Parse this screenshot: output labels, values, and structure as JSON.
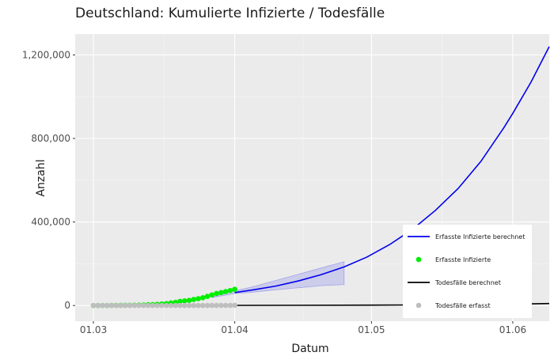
{
  "chart_data": {
    "type": "line",
    "title": "Deutschland: Kumulierte Infizierte / Todesfälle",
    "xlabel": "Datum",
    "ylabel": "Anzahl",
    "x_ticks": [
      "01.03",
      "01.04",
      "01.05",
      "01.06"
    ],
    "y_ticks": [
      "0",
      "400,000",
      "800,000",
      "1,200,000"
    ],
    "y_tick_values": [
      0,
      400000,
      800000,
      1200000
    ],
    "x_range": [
      "2020-02-26",
      "2020-06-09"
    ],
    "y_range": [
      -75000,
      1300000
    ],
    "grid": true,
    "legend_position": "bottom-right",
    "series": [
      {
        "name": "Erfasste Infizierte berechnet",
        "kind": "line",
        "color": "#0000ee",
        "points": [
          [
            "2020-04-01",
            62000
          ],
          [
            "2020-04-05",
            75000
          ],
          [
            "2020-04-10",
            93000
          ],
          [
            "2020-04-15",
            118000
          ],
          [
            "2020-04-20",
            148000
          ],
          [
            "2020-04-25",
            185000
          ],
          [
            "2020-04-30",
            232000
          ],
          [
            "2020-05-05",
            292000
          ],
          [
            "2020-05-10",
            365000
          ],
          [
            "2020-05-15",
            455000
          ],
          [
            "2020-05-20",
            560000
          ],
          [
            "2020-05-25",
            690000
          ],
          [
            "2020-05-30",
            850000
          ],
          [
            "2020-06-01",
            920000
          ],
          [
            "2020-06-05",
            1070000
          ],
          [
            "2020-06-09",
            1240000
          ]
        ]
      },
      {
        "name": "Erfasste Infizierte",
        "kind": "points",
        "color": "#00ee00",
        "points": [
          [
            "2020-03-01",
            130
          ],
          [
            "2020-03-02",
            160
          ],
          [
            "2020-03-03",
            200
          ],
          [
            "2020-03-04",
            260
          ],
          [
            "2020-03-05",
            480
          ],
          [
            "2020-03-06",
            670
          ],
          [
            "2020-03-07",
            850
          ],
          [
            "2020-03-08",
            1040
          ],
          [
            "2020-03-09",
            1200
          ],
          [
            "2020-03-10",
            1560
          ],
          [
            "2020-03-11",
            1900
          ],
          [
            "2020-03-12",
            2700
          ],
          [
            "2020-03-13",
            3700
          ],
          [
            "2020-03-14",
            4600
          ],
          [
            "2020-03-15",
            5800
          ],
          [
            "2020-03-16",
            7300
          ],
          [
            "2020-03-17",
            9300
          ],
          [
            "2020-03-18",
            12300
          ],
          [
            "2020-03-19",
            15300
          ],
          [
            "2020-03-20",
            19800
          ],
          [
            "2020-03-21",
            22200
          ],
          [
            "2020-03-22",
            24900
          ],
          [
            "2020-03-23",
            29100
          ],
          [
            "2020-03-24",
            32900
          ],
          [
            "2020-03-25",
            37300
          ],
          [
            "2020-03-26",
            43900
          ],
          [
            "2020-03-27",
            50900
          ],
          [
            "2020-03-28",
            57700
          ],
          [
            "2020-03-29",
            62100
          ],
          [
            "2020-03-30",
            66900
          ],
          [
            "2020-03-31",
            71800
          ],
          [
            "2020-04-01",
            77900
          ]
        ]
      },
      {
        "name": "Todesfälle berechnet",
        "kind": "line",
        "color": "#000000",
        "points": [
          [
            "2020-04-01",
            800
          ],
          [
            "2020-04-15",
            1200
          ],
          [
            "2020-05-01",
            1900
          ],
          [
            "2020-05-15",
            3500
          ],
          [
            "2020-06-01",
            6500
          ],
          [
            "2020-06-09",
            9500
          ]
        ]
      },
      {
        "name": "Todesfälle erfasst",
        "kind": "points",
        "color": "#bebebe",
        "points": [
          [
            "2020-03-01",
            0
          ],
          [
            "2020-03-02",
            0
          ],
          [
            "2020-03-03",
            0
          ],
          [
            "2020-03-04",
            0
          ],
          [
            "2020-03-05",
            0
          ],
          [
            "2020-03-06",
            0
          ],
          [
            "2020-03-07",
            0
          ],
          [
            "2020-03-08",
            0
          ],
          [
            "2020-03-09",
            2
          ],
          [
            "2020-03-10",
            2
          ],
          [
            "2020-03-11",
            3
          ],
          [
            "2020-03-12",
            6
          ],
          [
            "2020-03-13",
            8
          ],
          [
            "2020-03-14",
            9
          ],
          [
            "2020-03-15",
            13
          ],
          [
            "2020-03-16",
            17
          ],
          [
            "2020-03-17",
            24
          ],
          [
            "2020-03-18",
            28
          ],
          [
            "2020-03-19",
            44
          ],
          [
            "2020-03-20",
            67
          ],
          [
            "2020-03-21",
            84
          ],
          [
            "2020-03-22",
            94
          ],
          [
            "2020-03-23",
            123
          ],
          [
            "2020-03-24",
            157
          ],
          [
            "2020-03-25",
            206
          ],
          [
            "2020-03-26",
            267
          ],
          [
            "2020-03-27",
            342
          ],
          [
            "2020-03-28",
            433
          ],
          [
            "2020-03-29",
            533
          ],
          [
            "2020-03-30",
            645
          ],
          [
            "2020-03-31",
            775
          ],
          [
            "2020-04-01",
            920
          ]
        ]
      }
    ],
    "confidence_band": {
      "color": "#0000ee",
      "points": [
        [
          "2020-03-27",
          38000,
          40000
        ],
        [
          "2020-04-01",
          57000,
          70000
        ],
        [
          "2020-04-05",
          64000,
          90000
        ],
        [
          "2020-04-10",
          75000,
          120000
        ],
        [
          "2020-04-15",
          85000,
          150000
        ],
        [
          "2020-04-20",
          95000,
          180000
        ],
        [
          "2020-04-25",
          100000,
          210000
        ]
      ]
    },
    "legend": [
      {
        "label": "Erfasste Infizierte berechnet",
        "symbol": "line",
        "color": "#0000ee"
      },
      {
        "label": "Erfasste Infizierte",
        "symbol": "point",
        "color": "#00ee00"
      },
      {
        "label": "Todesfälle berechnet",
        "symbol": "line",
        "color": "#000000"
      },
      {
        "label": "Todesfälle erfasst",
        "symbol": "point",
        "color": "#bebebe"
      }
    ]
  }
}
